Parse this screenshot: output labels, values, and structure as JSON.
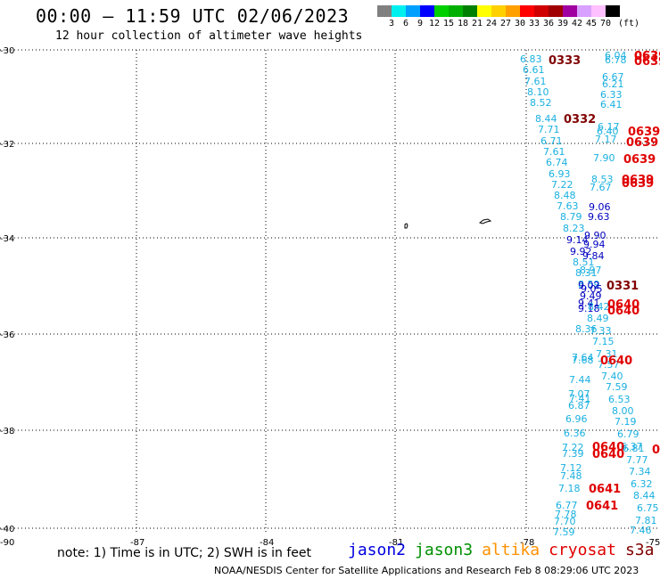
{
  "header": {
    "title": "00:00 – 11:59 UTC 02/06/2023",
    "subtitle": "12 hour collection of altimeter wave heights"
  },
  "legend": {
    "colors": [
      "#808080",
      "#00f0f0",
      "#00a0ff",
      "#0000ff",
      "#00d000",
      "#00b000",
      "#008000",
      "#ffff00",
      "#ffd000",
      "#ffa000",
      "#ff0000",
      "#d00000",
      "#a00000",
      "#a000a0",
      "#d8a0ff",
      "#ffc0ff",
      "#000000"
    ],
    "labels": [
      "3",
      "6",
      "9",
      "12",
      "15",
      "18",
      "21",
      "24",
      "27",
      "30",
      "33",
      "36",
      "39",
      "42",
      "45",
      "70",
      "(ft)"
    ]
  },
  "map": {
    "lat_labels": [
      "-30",
      "-32",
      "-34",
      "-36",
      "-38",
      "-40"
    ],
    "lon_labels": [
      "-90",
      "-87",
      "-84",
      "-81",
      "-78",
      "-75"
    ],
    "wave_labels": [
      {
        "t": "6.83",
        "c": "#1ab0e0"
      },
      {
        "t": "6.61",
        "c": "#1ab0e0"
      },
      {
        "t": "7.61",
        "c": "#1ab0e0"
      },
      {
        "t": "8.10",
        "c": "#1ab0e0"
      },
      {
        "t": "8.52",
        "c": "#1ab0e0"
      },
      {
        "t": "8.44",
        "c": "#1ab0e0"
      },
      {
        "t": "7.71",
        "c": "#1ab0e0"
      },
      {
        "t": "6.71",
        "c": "#1ab0e0"
      },
      {
        "t": "7.61",
        "c": "#1ab0e0"
      },
      {
        "t": "6.74",
        "c": "#1ab0e0"
      },
      {
        "t": "6.93",
        "c": "#1ab0e0"
      },
      {
        "t": "7.22",
        "c": "#1ab0e0"
      },
      {
        "t": "8.48",
        "c": "#1ab0e0"
      },
      {
        "t": "7.63",
        "c": "#1ab0e0"
      },
      {
        "t": "8.79",
        "c": "#1ab0e0"
      },
      {
        "t": "8.23",
        "c": "#1ab0e0"
      },
      {
        "t": "9.14",
        "c": "#0000c0"
      },
      {
        "t": "9.92",
        "c": "#0000c0"
      },
      {
        "t": "8.51",
        "c": "#1ab0e0"
      },
      {
        "t": "8.31",
        "c": "#1ab0e0"
      },
      {
        "t": "8.59",
        "c": "#1ab0e0"
      },
      {
        "t": "9.05",
        "c": "#0000c0"
      },
      {
        "t": "9.41",
        "c": "#0000c0"
      },
      {
        "t": "9.18",
        "c": "#0000c0"
      },
      {
        "t": "8.49",
        "c": "#1ab0e0"
      },
      {
        "t": "8.36",
        "c": "#1ab0e0"
      },
      {
        "t": "7.64",
        "c": "#1ab0e0"
      },
      {
        "t": "7.68",
        "c": "#1ab0e0"
      },
      {
        "t": "7.44",
        "c": "#1ab0e0"
      },
      {
        "t": "7.07",
        "c": "#1ab0e0"
      },
      {
        "t": "7.41",
        "c": "#1ab0e0"
      },
      {
        "t": "6.87",
        "c": "#1ab0e0"
      },
      {
        "t": "6.96",
        "c": "#1ab0e0"
      },
      {
        "t": "6.36",
        "c": "#1ab0e0"
      },
      {
        "t": "7.22",
        "c": "#1ab0e0"
      },
      {
        "t": "7.39",
        "c": "#1ab0e0"
      },
      {
        "t": "7.12",
        "c": "#1ab0e0"
      },
      {
        "t": "7.48",
        "c": "#1ab0e0"
      },
      {
        "t": "7.18",
        "c": "#1ab0e0"
      },
      {
        "t": "6.77",
        "c": "#1ab0e0"
      },
      {
        "t": "7.78",
        "c": "#1ab0e0"
      },
      {
        "t": "7.70",
        "c": "#1ab0e0"
      },
      {
        "t": "7.59",
        "c": "#1ab0e0"
      },
      {
        "t": "6.04",
        "c": "#1ab0e0"
      },
      {
        "t": "6.78",
        "c": "#1ab0e0"
      },
      {
        "t": "6.67",
        "c": "#1ab0e0"
      },
      {
        "t": "6.21",
        "c": "#1ab0e0"
      },
      {
        "t": "6.33",
        "c": "#1ab0e0"
      },
      {
        "t": "6.41",
        "c": "#1ab0e0"
      },
      {
        "t": "6.17",
        "c": "#1ab0e0"
      },
      {
        "t": "6.40",
        "c": "#1ab0e0"
      },
      {
        "t": "7.17",
        "c": "#1ab0e0"
      },
      {
        "t": "7.90",
        "c": "#1ab0e0"
      },
      {
        "t": "8.53",
        "c": "#1ab0e0"
      },
      {
        "t": "7.67",
        "c": "#1ab0e0"
      },
      {
        "t": "9.06",
        "c": "#0000c0"
      },
      {
        "t": "9.63",
        "c": "#0000c0"
      },
      {
        "t": "9.90",
        "c": "#0000c0"
      },
      {
        "t": "9.94",
        "c": "#0000c0"
      },
      {
        "t": "9.84",
        "c": "#0000c0"
      },
      {
        "t": "8.97",
        "c": "#1ab0e0"
      },
      {
        "t": "9.02",
        "c": "#0000c0"
      },
      {
        "t": "9.49",
        "c": "#0000c0"
      },
      {
        "t": "8.42",
        "c": "#1ab0e0"
      },
      {
        "t": "7.33",
        "c": "#1ab0e0"
      },
      {
        "t": "7.15",
        "c": "#1ab0e0"
      },
      {
        "t": "7.31",
        "c": "#1ab0e0"
      },
      {
        "t": "7.57",
        "c": "#1ab0e0"
      },
      {
        "t": "7.40",
        "c": "#1ab0e0"
      },
      {
        "t": "7.59",
        "c": "#1ab0e0"
      },
      {
        "t": "6.53",
        "c": "#1ab0e0"
      },
      {
        "t": "8.00",
        "c": "#1ab0e0"
      },
      {
        "t": "7.19",
        "c": "#1ab0e0"
      },
      {
        "t": "6.79",
        "c": "#1ab0e0"
      },
      {
        "t": "6.37",
        "c": "#1ab0e0"
      },
      {
        "t": "6.81",
        "c": "#1ab0e0"
      },
      {
        "t": "7.77",
        "c": "#1ab0e0"
      },
      {
        "t": "7.34",
        "c": "#1ab0e0"
      },
      {
        "t": "6.32",
        "c": "#1ab0e0"
      },
      {
        "t": "8.44",
        "c": "#1ab0e0"
      },
      {
        "t": "6.75",
        "c": "#1ab0e0"
      },
      {
        "t": "7.81",
        "c": "#1ab0e0"
      },
      {
        "t": "7.46",
        "c": "#1ab0e0"
      }
    ],
    "time_labels": [
      {
        "t": "0333",
        "c": "#800000"
      },
      {
        "t": "0332",
        "c": "#800000"
      },
      {
        "t": "0331",
        "c": "#800000"
      },
      {
        "t": "0639",
        "c": "#e00000"
      },
      {
        "t": "0639",
        "c": "#e00000"
      },
      {
        "t": "0639",
        "c": "#e00000"
      },
      {
        "t": "0639",
        "c": "#e00000"
      },
      {
        "t": "0639",
        "c": "#e00000"
      },
      {
        "t": "0639",
        "c": "#e00000"
      },
      {
        "t": "0639",
        "c": "#e00000"
      },
      {
        "t": "0640",
        "c": "#e00000"
      },
      {
        "t": "0640",
        "c": "#e00000"
      },
      {
        "t": "0640",
        "c": "#e00000"
      },
      {
        "t": "0640",
        "c": "#e00000"
      },
      {
        "t": "0640",
        "c": "#e00000"
      },
      {
        "t": "0641",
        "c": "#e00000"
      },
      {
        "t": "0641",
        "c": "#e00000"
      },
      {
        "t": "063",
        "c": "#e00000"
      },
      {
        "t": "0",
        "c": "#e00000"
      }
    ]
  },
  "footer": {
    "note": "note:  1) Time is in UTC; 2) SWH is in feet",
    "satellites": [
      {
        "name": "jason2",
        "color": "#0000e0"
      },
      {
        "name": "jason3",
        "color": "#009000"
      },
      {
        "name": "altika",
        "color": "#ff9000"
      },
      {
        "name": "cryosat",
        "color": "#e00000"
      },
      {
        "name": "s3a",
        "color": "#800000"
      }
    ],
    "credit": "NOAA/NESDIS Center for Satellite Applications and Research   Feb  8 08:29:06 UTC 2023"
  }
}
